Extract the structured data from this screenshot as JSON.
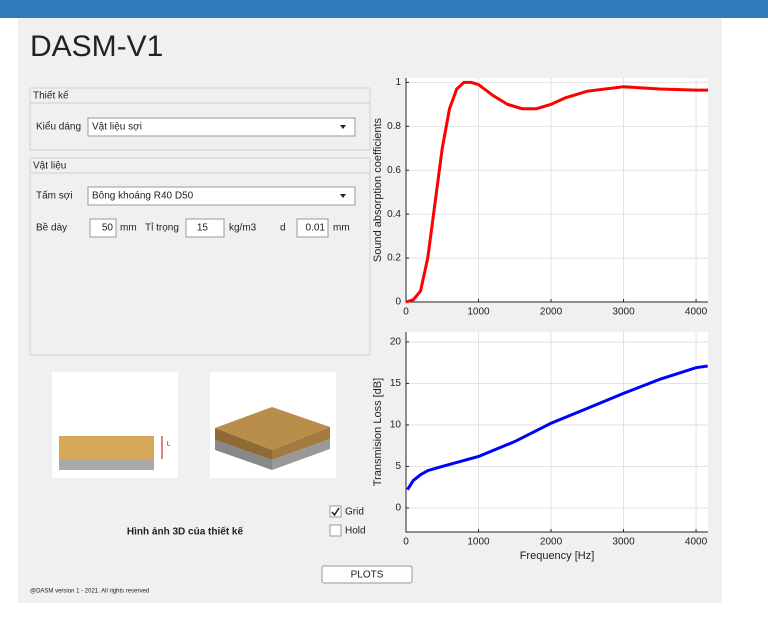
{
  "title": "DASM-V1",
  "design": {
    "legend": "Thiết kế",
    "style_label": "Kiểu dáng",
    "style_value": "Vật liệu sợi"
  },
  "material": {
    "legend": "Vật liệu",
    "sheet_label": "Tấm sợi",
    "sheet_value": "Bông khoáng R40 D50",
    "thickness_label": "Bề dày",
    "thickness": 50,
    "thickness_unit": "mm",
    "density_label": "Tỉ trọng",
    "density": 15,
    "density_unit": "kg/m3",
    "d_label": "d",
    "d": 0.01,
    "d_unit": "mm"
  },
  "image_dim_label": "L",
  "image_caption": "Hình ảnh 3D của thiết kế",
  "grid": {
    "label": "Grid",
    "checked": true
  },
  "hold": {
    "label": "Hold",
    "checked": false
  },
  "button": "PLOTS",
  "footer": "@DASM version 1 - 2021. All rights reserved",
  "chart_data": [
    {
      "type": "line",
      "ylabel": "Sound absorption coefficients",
      "grid": true,
      "x": [
        0,
        100,
        200,
        300,
        400,
        500,
        600,
        700,
        800,
        900,
        1000,
        1200,
        1400,
        1600,
        1800,
        2000,
        2200,
        2500,
        3000,
        3500,
        4000,
        4165
      ],
      "series": [
        {
          "color": "#ff0000",
          "values": [
            0,
            0.01,
            0.05,
            0.2,
            0.45,
            0.7,
            0.88,
            0.97,
            1.0,
            1.0,
            0.99,
            0.94,
            0.9,
            0.88,
            0.88,
            0.9,
            0.93,
            0.96,
            0.98,
            0.97,
            0.965,
            0.965
          ]
        }
      ],
      "xlim": [
        0,
        4165
      ],
      "ylim": [
        0,
        1.02
      ],
      "xticks": [
        0,
        1000,
        2000,
        3000,
        4000
      ],
      "yticks": [
        0,
        0.2,
        0.4,
        0.6,
        0.8,
        1
      ]
    },
    {
      "type": "line",
      "ylabel": "Transmision Loss [dB]",
      "xlabel": "Frequency [Hz]",
      "grid": true,
      "x": [
        20,
        100,
        200,
        300,
        500,
        1000,
        1500,
        2000,
        2500,
        3000,
        3500,
        4000,
        4160
      ],
      "series": [
        {
          "color": "#0000ff",
          "values": [
            2.2,
            3.3,
            4,
            4.5,
            5,
            6.2,
            8,
            10.2,
            12,
            13.8,
            15.5,
            16.9,
            17.1
          ]
        }
      ],
      "xlim": [
        0,
        4165
      ],
      "ylim": [
        -2.9,
        21.2
      ],
      "xticks": [
        0,
        1000,
        2000,
        3000,
        4000
      ],
      "yticks": [
        0,
        5,
        10,
        15,
        20
      ]
    }
  ]
}
